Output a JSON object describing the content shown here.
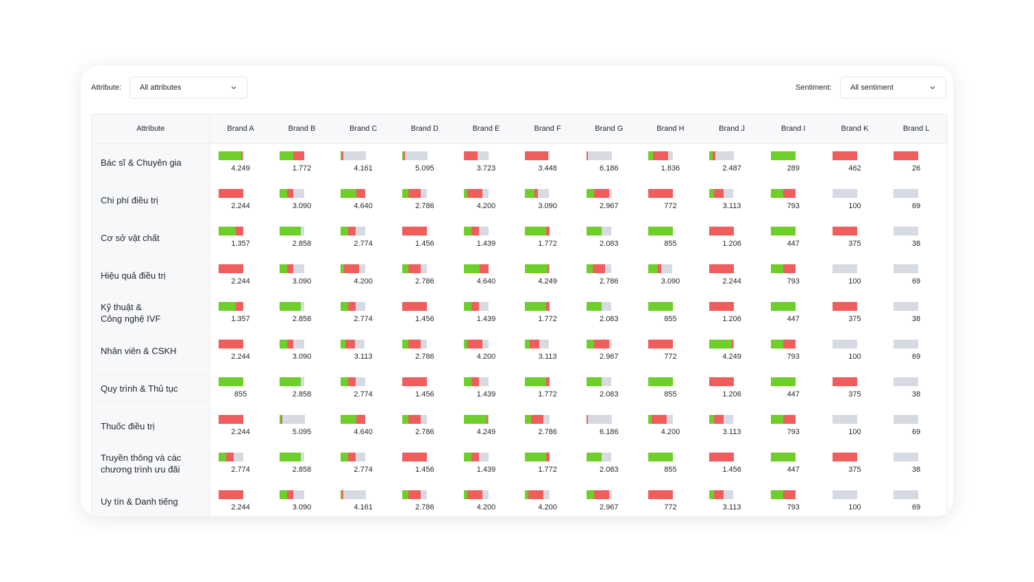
{
  "colors": {
    "positive": "#6fcf2a",
    "negative": "#f05d5d",
    "neutral": "#d6dae2"
  },
  "filters": {
    "attribute_label": "Attribute:",
    "attribute_value": "All attributes",
    "sentiment_label": "Sentiment:",
    "sentiment_value": "All sentiment"
  },
  "table": {
    "attribute_header": "Attribute",
    "brands": [
      "Brand A",
      "Brand B",
      "Brand C",
      "Brand D",
      "Brand E",
      "Brand F",
      "Brand G",
      "Brand H",
      "Brand J",
      "Brand I",
      "Brand K",
      "Brand L"
    ],
    "rows": [
      {
        "attribute": "Bác sĩ & Chuyên gia",
        "cells": [
          {
            "value": "4.249",
            "bar": [
              0.92,
              0.03,
              0.05
            ]
          },
          {
            "value": "1.772",
            "bar": [
              0.55,
              0.45,
              0.0
            ]
          },
          {
            "value": "4.161",
            "bar": [
              0.04,
              0.03,
              0.93
            ]
          },
          {
            "value": "5.095",
            "bar": [
              0.03,
              0.04,
              0.93
            ]
          },
          {
            "value": "3.723",
            "bar": [
              0.0,
              0.55,
              0.45
            ]
          },
          {
            "value": "3.448",
            "bar": [
              0.0,
              0.95,
              0.05
            ]
          },
          {
            "value": "6.186",
            "bar": [
              0.0,
              0.03,
              0.97
            ]
          },
          {
            "value": "1.836",
            "bar": [
              0.2,
              0.6,
              0.2
            ]
          },
          {
            "value": "2.487",
            "bar": [
              0.15,
              0.1,
              0.75
            ]
          },
          {
            "value": "289",
            "bar": [
              1.0,
              0.0,
              0.0
            ]
          },
          {
            "value": "462",
            "bar": [
              0.0,
              1.0,
              0.0
            ]
          },
          {
            "value": "26",
            "bar": [
              0.0,
              1.0,
              0.0
            ]
          }
        ]
      },
      {
        "attribute": "Chi phí điều trị",
        "cells": [
          {
            "value": "2.244",
            "bar": [
              0.0,
              1.0,
              0.0
            ]
          },
          {
            "value": "3.090",
            "bar": [
              0.3,
              0.25,
              0.45
            ]
          },
          {
            "value": "4.640",
            "bar": [
              0.65,
              0.35,
              0.0
            ]
          },
          {
            "value": "2.786",
            "bar": [
              0.25,
              0.5,
              0.25
            ]
          },
          {
            "value": "4.200",
            "bar": [
              0.15,
              0.6,
              0.25
            ]
          },
          {
            "value": "3.090",
            "bar": [
              0.4,
              0.15,
              0.45
            ]
          },
          {
            "value": "2.967",
            "bar": [
              0.3,
              0.6,
              0.1
            ]
          },
          {
            "value": "772",
            "bar": [
              0.0,
              1.0,
              0.0
            ]
          },
          {
            "value": "3.113",
            "bar": [
              0.2,
              0.4,
              0.4
            ]
          },
          {
            "value": "793",
            "bar": [
              0.5,
              0.5,
              0.0
            ]
          },
          {
            "value": "100",
            "bar": [
              0.0,
              0.0,
              1.0
            ]
          },
          {
            "value": "69",
            "bar": [
              0.0,
              0.0,
              1.0
            ]
          }
        ]
      },
      {
        "attribute": "Cơ sở vật chất",
        "cells": [
          {
            "value": "1.357",
            "bar": [
              0.7,
              0.3,
              0.0
            ]
          },
          {
            "value": "2.858",
            "bar": [
              0.85,
              0.0,
              0.15
            ]
          },
          {
            "value": "2.774",
            "bar": [
              0.3,
              0.3,
              0.4
            ]
          },
          {
            "value": "1.456",
            "bar": [
              0.0,
              1.0,
              0.0
            ]
          },
          {
            "value": "1.439",
            "bar": [
              0.3,
              0.3,
              0.4
            ]
          },
          {
            "value": "1.772",
            "bar": [
              0.85,
              0.15,
              0.0
            ]
          },
          {
            "value": "2.083",
            "bar": [
              0.6,
              0.0,
              0.4
            ]
          },
          {
            "value": "855",
            "bar": [
              1.0,
              0.0,
              0.0
            ]
          },
          {
            "value": "1.206",
            "bar": [
              0.0,
              1.0,
              0.0
            ]
          },
          {
            "value": "447",
            "bar": [
              1.0,
              0.0,
              0.0
            ]
          },
          {
            "value": "375",
            "bar": [
              0.0,
              1.0,
              0.0
            ]
          },
          {
            "value": "38",
            "bar": [
              0.0,
              0.0,
              1.0
            ]
          }
        ]
      },
      {
        "attribute": "Hiệu quả điều trị",
        "cells": [
          {
            "value": "2.244",
            "bar": [
              0.0,
              1.0,
              0.0
            ]
          },
          {
            "value": "3.090",
            "bar": [
              0.3,
              0.25,
              0.45
            ]
          },
          {
            "value": "4.200",
            "bar": [
              0.15,
              0.6,
              0.25
            ]
          },
          {
            "value": "2.786",
            "bar": [
              0.25,
              0.5,
              0.25
            ]
          },
          {
            "value": "4.640",
            "bar": [
              0.65,
              0.35,
              0.0
            ]
          },
          {
            "value": "4.249",
            "bar": [
              0.92,
              0.03,
              0.05
            ]
          },
          {
            "value": "2.786",
            "bar": [
              0.25,
              0.5,
              0.25
            ]
          },
          {
            "value": "3.090",
            "bar": [
              0.4,
              0.15,
              0.45
            ]
          },
          {
            "value": "2.244",
            "bar": [
              0.0,
              1.0,
              0.0
            ]
          },
          {
            "value": "793",
            "bar": [
              0.5,
              0.5,
              0.0
            ]
          },
          {
            "value": "100",
            "bar": [
              0.0,
              0.0,
              1.0
            ]
          },
          {
            "value": "69",
            "bar": [
              0.0,
              0.0,
              1.0
            ]
          }
        ]
      },
      {
        "attribute": "Kỹ thuật &\nCông nghệ IVF",
        "cells": [
          {
            "value": "1.357",
            "bar": [
              0.7,
              0.3,
              0.0
            ]
          },
          {
            "value": "2.858",
            "bar": [
              0.85,
              0.0,
              0.15
            ]
          },
          {
            "value": "2.774",
            "bar": [
              0.3,
              0.3,
              0.4
            ]
          },
          {
            "value": "1.456",
            "bar": [
              0.0,
              1.0,
              0.0
            ]
          },
          {
            "value": "1.439",
            "bar": [
              0.3,
              0.3,
              0.4
            ]
          },
          {
            "value": "1.772",
            "bar": [
              0.85,
              0.15,
              0.0
            ]
          },
          {
            "value": "2.083",
            "bar": [
              0.6,
              0.0,
              0.4
            ]
          },
          {
            "value": "855",
            "bar": [
              1.0,
              0.0,
              0.0
            ]
          },
          {
            "value": "1.206",
            "bar": [
              0.0,
              1.0,
              0.0
            ]
          },
          {
            "value": "447",
            "bar": [
              1.0,
              0.0,
              0.0
            ]
          },
          {
            "value": "375",
            "bar": [
              0.0,
              1.0,
              0.0
            ]
          },
          {
            "value": "38",
            "bar": [
              0.0,
              0.0,
              1.0
            ]
          }
        ]
      },
      {
        "attribute": "Nhân viên & CSKH",
        "cells": [
          {
            "value": "2.244",
            "bar": [
              0.0,
              1.0,
              0.0
            ]
          },
          {
            "value": "3.090",
            "bar": [
              0.3,
              0.25,
              0.45
            ]
          },
          {
            "value": "3.113",
            "bar": [
              0.2,
              0.4,
              0.4
            ]
          },
          {
            "value": "2.786",
            "bar": [
              0.25,
              0.5,
              0.25
            ]
          },
          {
            "value": "4.200",
            "bar": [
              0.15,
              0.6,
              0.25
            ]
          },
          {
            "value": "3.113",
            "bar": [
              0.2,
              0.4,
              0.4
            ]
          },
          {
            "value": "2.967",
            "bar": [
              0.3,
              0.6,
              0.1
            ]
          },
          {
            "value": "772",
            "bar": [
              0.0,
              1.0,
              0.0
            ]
          },
          {
            "value": "4.249",
            "bar": [
              0.92,
              0.03,
              0.05
            ]
          },
          {
            "value": "793",
            "bar": [
              0.5,
              0.5,
              0.0
            ]
          },
          {
            "value": "100",
            "bar": [
              0.0,
              0.0,
              1.0
            ]
          },
          {
            "value": "69",
            "bar": [
              0.0,
              0.0,
              1.0
            ]
          }
        ]
      },
      {
        "attribute": "Quy trình & Thủ tục",
        "cells": [
          {
            "value": "855",
            "bar": [
              1.0,
              0.0,
              0.0
            ]
          },
          {
            "value": "2.858",
            "bar": [
              0.85,
              0.0,
              0.15
            ]
          },
          {
            "value": "2.774",
            "bar": [
              0.3,
              0.3,
              0.4
            ]
          },
          {
            "value": "1.456",
            "bar": [
              0.0,
              1.0,
              0.0
            ]
          },
          {
            "value": "1.439",
            "bar": [
              0.3,
              0.3,
              0.4
            ]
          },
          {
            "value": "1.772",
            "bar": [
              0.85,
              0.15,
              0.0
            ]
          },
          {
            "value": "2.083",
            "bar": [
              0.6,
              0.0,
              0.4
            ]
          },
          {
            "value": "855",
            "bar": [
              1.0,
              0.0,
              0.0
            ]
          },
          {
            "value": "1.206",
            "bar": [
              0.0,
              1.0,
              0.0
            ]
          },
          {
            "value": "447",
            "bar": [
              1.0,
              0.0,
              0.0
            ]
          },
          {
            "value": "375",
            "bar": [
              0.0,
              1.0,
              0.0
            ]
          },
          {
            "value": "38",
            "bar": [
              0.0,
              0.0,
              1.0
            ]
          }
        ]
      },
      {
        "attribute": "Thuốc điều trị",
        "cells": [
          {
            "value": "2.244",
            "bar": [
              0.0,
              1.0,
              0.0
            ]
          },
          {
            "value": "5.095",
            "bar": [
              0.03,
              0.04,
              0.93
            ]
          },
          {
            "value": "4.640",
            "bar": [
              0.65,
              0.35,
              0.0
            ]
          },
          {
            "value": "2.786",
            "bar": [
              0.25,
              0.5,
              0.25
            ]
          },
          {
            "value": "4.249",
            "bar": [
              0.92,
              0.03,
              0.05
            ]
          },
          {
            "value": "2.786",
            "bar": [
              0.25,
              0.5,
              0.25
            ]
          },
          {
            "value": "6.186",
            "bar": [
              0.0,
              0.03,
              0.97
            ]
          },
          {
            "value": "4.200",
            "bar": [
              0.15,
              0.6,
              0.25
            ]
          },
          {
            "value": "3.113",
            "bar": [
              0.2,
              0.4,
              0.4
            ]
          },
          {
            "value": "793",
            "bar": [
              0.5,
              0.5,
              0.0
            ]
          },
          {
            "value": "100",
            "bar": [
              0.0,
              0.0,
              1.0
            ]
          },
          {
            "value": "69",
            "bar": [
              0.0,
              0.0,
              1.0
            ]
          }
        ]
      },
      {
        "attribute": "Truyền thông và các\nchương trình ưu đãi",
        "cells": [
          {
            "value": "2.774",
            "bar": [
              0.3,
              0.3,
              0.4
            ]
          },
          {
            "value": "2.858",
            "bar": [
              0.85,
              0.0,
              0.15
            ]
          },
          {
            "value": "2.774",
            "bar": [
              0.3,
              0.3,
              0.4
            ]
          },
          {
            "value": "1.456",
            "bar": [
              0.0,
              1.0,
              0.0
            ]
          },
          {
            "value": "1.439",
            "bar": [
              0.3,
              0.3,
              0.4
            ]
          },
          {
            "value": "1.772",
            "bar": [
              0.85,
              0.15,
              0.0
            ]
          },
          {
            "value": "2.083",
            "bar": [
              0.6,
              0.0,
              0.4
            ]
          },
          {
            "value": "855",
            "bar": [
              1.0,
              0.0,
              0.0
            ]
          },
          {
            "value": "1.456",
            "bar": [
              0.0,
              1.0,
              0.0
            ]
          },
          {
            "value": "447",
            "bar": [
              1.0,
              0.0,
              0.0
            ]
          },
          {
            "value": "375",
            "bar": [
              0.0,
              1.0,
              0.0
            ]
          },
          {
            "value": "38",
            "bar": [
              0.0,
              0.0,
              1.0
            ]
          }
        ]
      },
      {
        "attribute": "Uy tín & Danh tiếng",
        "cells": [
          {
            "value": "2.244",
            "bar": [
              0.0,
              1.0,
              0.0
            ]
          },
          {
            "value": "3.090",
            "bar": [
              0.3,
              0.25,
              0.45
            ]
          },
          {
            "value": "4.161",
            "bar": [
              0.04,
              0.03,
              0.93
            ]
          },
          {
            "value": "2.786",
            "bar": [
              0.25,
              0.5,
              0.25
            ]
          },
          {
            "value": "4.200",
            "bar": [
              0.15,
              0.6,
              0.25
            ]
          },
          {
            "value": "4.200",
            "bar": [
              0.15,
              0.6,
              0.25
            ]
          },
          {
            "value": "2.967",
            "bar": [
              0.3,
              0.6,
              0.1
            ]
          },
          {
            "value": "772",
            "bar": [
              0.0,
              1.0,
              0.0
            ]
          },
          {
            "value": "3.113",
            "bar": [
              0.2,
              0.4,
              0.4
            ]
          },
          {
            "value": "793",
            "bar": [
              0.5,
              0.5,
              0.0
            ]
          },
          {
            "value": "100",
            "bar": [
              0.0,
              0.0,
              1.0
            ]
          },
          {
            "value": "69",
            "bar": [
              0.0,
              0.0,
              1.0
            ]
          }
        ]
      }
    ]
  }
}
